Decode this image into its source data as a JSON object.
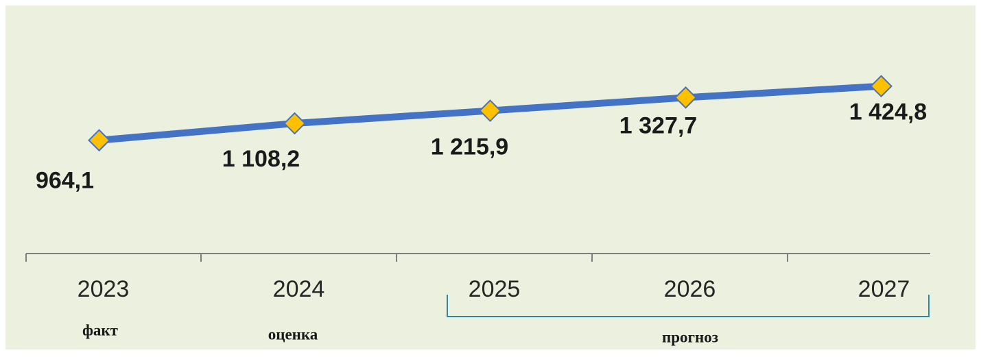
{
  "chart_data": {
    "type": "line",
    "categories": [
      "2023",
      "2024",
      "2025",
      "2026",
      "2027"
    ],
    "values": [
      964.1,
      1108.2,
      1215.9,
      1327.7,
      1424.8
    ],
    "value_labels": [
      "964,1",
      "1 108,2",
      "1 215,9",
      "1 327,7",
      "1 424,8"
    ],
    "sublabels": [
      "факт",
      "оценка",
      "прогноз"
    ],
    "color": "#4472c4",
    "marker_color": "#ffc000",
    "ylim": [
      0,
      2100
    ]
  }
}
